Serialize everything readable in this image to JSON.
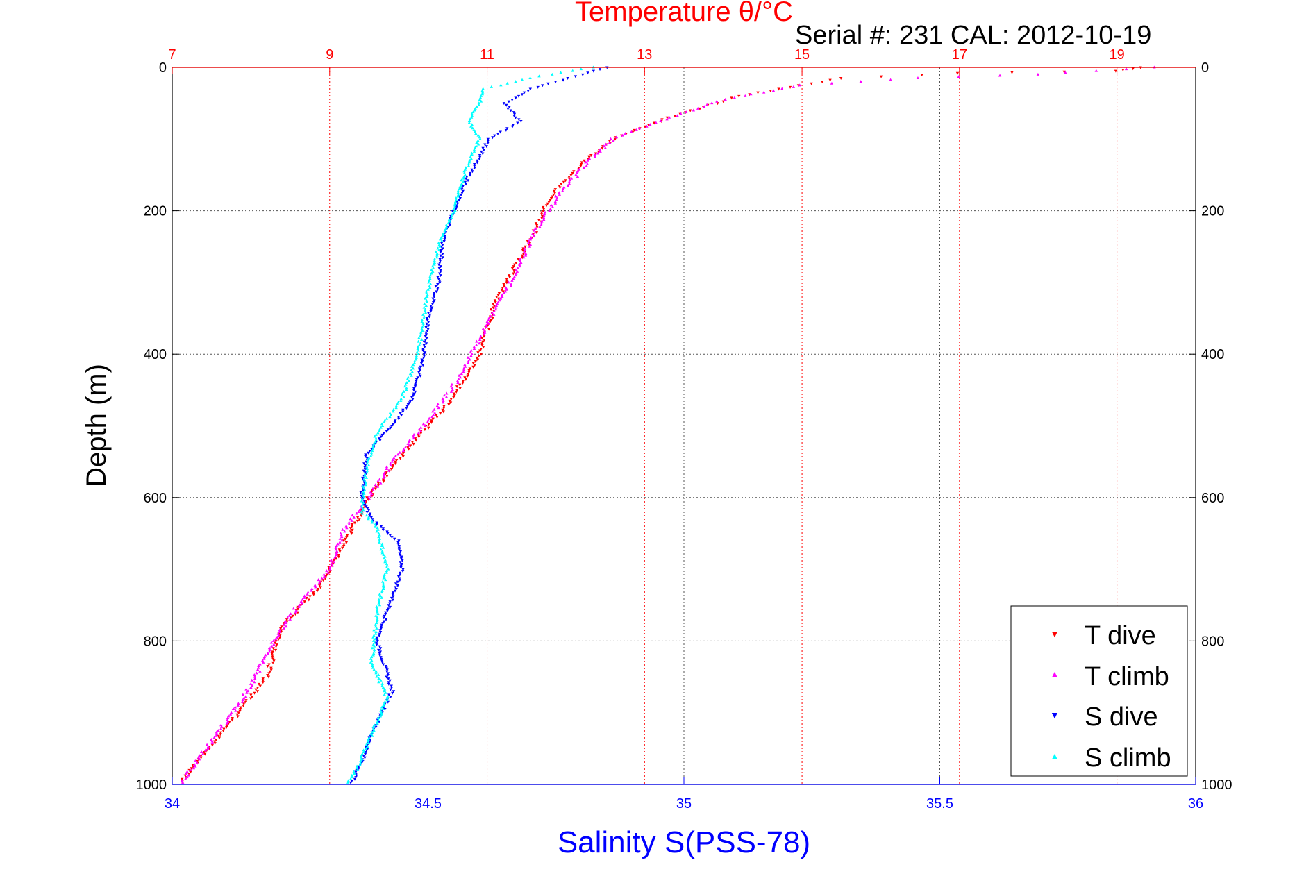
{
  "chart_data": {
    "type": "scatter",
    "title_top": "Temperature θ/°C",
    "subtitle": "Serial #: 231  CAL: 2012-10-19",
    "ylabel": "Depth (m)",
    "xlabel": "Salinity S(PSS-78)",
    "ylim": [
      0,
      1000
    ],
    "y_reversed": true,
    "x_salinity_range": [
      34,
      36
    ],
    "x_temp_range": [
      7,
      20
    ],
    "y_ticks": [
      "0",
      "200",
      "400",
      "600",
      "800",
      "1000"
    ],
    "salinity_ticks": [
      "34",
      "34.5",
      "35",
      "35.5",
      "36"
    ],
    "temp_ticks": [
      "7",
      "9",
      "11",
      "13",
      "15",
      "17",
      "19"
    ],
    "colors": {
      "t_dive": "#ff0000",
      "t_climb": "#ff00ff",
      "s_dive": "#0000ff",
      "s_climb": "#00ffff",
      "temp_axis": "#ff0000",
      "sal_axis": "#0000ff"
    },
    "legend": {
      "placement": "bottom-right",
      "entries": [
        "T dive",
        "T climb",
        "S dive",
        "S climb"
      ]
    },
    "series": [
      {
        "name": "T dive",
        "axis": "temperature",
        "marker": "triangle-down",
        "points": [
          [
            19.3,
            0
          ],
          [
            19.0,
            5
          ],
          [
            17.0,
            8
          ],
          [
            15.5,
            15
          ],
          [
            14.2,
            40
          ],
          [
            13.3,
            70
          ],
          [
            12.6,
            100
          ],
          [
            12.2,
            135
          ],
          [
            11.8,
            180
          ],
          [
            11.6,
            230
          ],
          [
            11.4,
            270
          ],
          [
            11.1,
            330
          ],
          [
            10.9,
            400
          ],
          [
            10.5,
            470
          ],
          [
            10.0,
            530
          ],
          [
            9.5,
            600
          ],
          [
            9.4,
            620
          ],
          [
            9.2,
            660
          ],
          [
            8.9,
            720
          ],
          [
            8.4,
            780
          ],
          [
            8.2,
            850
          ],
          [
            7.7,
            920
          ],
          [
            7.3,
            970
          ],
          [
            7.1,
            1000
          ]
        ]
      },
      {
        "name": "T climb",
        "axis": "temperature",
        "marker": "triangle-up",
        "points": [
          [
            19.5,
            0
          ],
          [
            18.0,
            10
          ],
          [
            16.5,
            15
          ],
          [
            15.0,
            25
          ],
          [
            14.0,
            45
          ],
          [
            13.2,
            75
          ],
          [
            12.6,
            100
          ],
          [
            12.3,
            130
          ],
          [
            11.9,
            180
          ],
          [
            11.6,
            230
          ],
          [
            11.3,
            300
          ],
          [
            10.9,
            380
          ],
          [
            10.6,
            440
          ],
          [
            10.2,
            500
          ],
          [
            9.8,
            550
          ],
          [
            9.5,
            600
          ],
          [
            9.2,
            640
          ],
          [
            9.0,
            700
          ],
          [
            8.6,
            750
          ],
          [
            8.3,
            800
          ],
          [
            7.9,
            880
          ],
          [
            7.5,
            940
          ],
          [
            7.1,
            1000
          ]
        ]
      },
      {
        "name": "S dive",
        "axis": "salinity",
        "marker": "triangle-down",
        "points": [
          [
            34.85,
            0
          ],
          [
            34.8,
            10
          ],
          [
            34.7,
            30
          ],
          [
            34.65,
            50
          ],
          [
            34.68,
            75
          ],
          [
            34.62,
            100
          ],
          [
            34.58,
            150
          ],
          [
            34.55,
            200
          ],
          [
            34.53,
            240
          ],
          [
            34.52,
            300
          ],
          [
            34.5,
            350
          ],
          [
            34.49,
            410
          ],
          [
            34.47,
            460
          ],
          [
            34.44,
            490
          ],
          [
            34.38,
            540
          ],
          [
            34.37,
            600
          ],
          [
            34.39,
            630
          ],
          [
            34.44,
            660
          ],
          [
            34.45,
            700
          ],
          [
            34.42,
            760
          ],
          [
            34.4,
            800
          ],
          [
            34.43,
            870
          ],
          [
            34.39,
            930
          ],
          [
            34.37,
            970
          ],
          [
            34.35,
            1000
          ]
        ]
      },
      {
        "name": "S climb",
        "axis": "salinity",
        "marker": "triangle-up",
        "points": [
          [
            34.82,
            0
          ],
          [
            34.7,
            15
          ],
          [
            34.61,
            30
          ],
          [
            34.6,
            50
          ],
          [
            34.58,
            75
          ],
          [
            34.6,
            100
          ],
          [
            34.57,
            150
          ],
          [
            34.55,
            200
          ],
          [
            34.52,
            250
          ],
          [
            34.5,
            310
          ],
          [
            34.48,
            400
          ],
          [
            34.45,
            460
          ],
          [
            34.4,
            510
          ],
          [
            34.38,
            560
          ],
          [
            34.37,
            620
          ],
          [
            34.4,
            640
          ],
          [
            34.42,
            700
          ],
          [
            34.4,
            760
          ],
          [
            34.39,
            830
          ],
          [
            34.42,
            880
          ],
          [
            34.39,
            930
          ],
          [
            34.36,
            980
          ],
          [
            34.34,
            1000
          ]
        ]
      }
    ]
  }
}
